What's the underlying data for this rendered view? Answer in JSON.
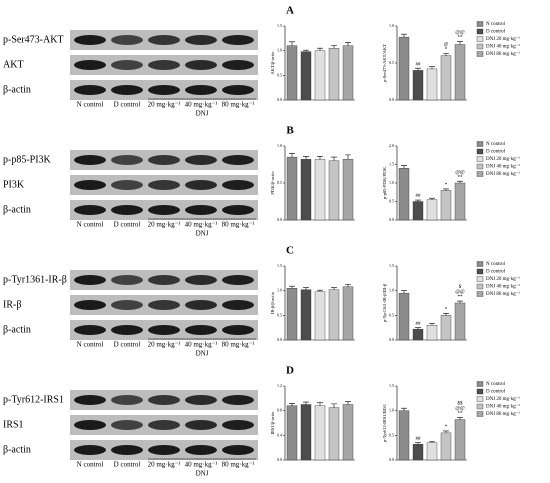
{
  "legend": [
    {
      "name": "N control",
      "color": "#8c8c8c"
    },
    {
      "name": "D control",
      "color": "#4d4d4d"
    },
    {
      "name": "DNJ 20 mg·kg⁻¹",
      "color": "#e0e0e0"
    },
    {
      "name": "DNJ 40 mg·kg⁻¹",
      "color": "#c4c4c4"
    },
    {
      "name": "DNJ 80 mg·kg⁻¹",
      "color": "#a6a6a6"
    }
  ],
  "panels": [
    {
      "letter": "A",
      "blot_labels": [
        "p-Ser473-AKT",
        "AKT",
        "β-actin"
      ],
      "lane_labels": [
        "N control",
        "D control",
        "20 mg·kg⁻¹",
        "40 mg·kg⁻¹",
        "80 mg·kg⁻¹"
      ],
      "group_label": "DNJ",
      "charts": [
        {
          "type": "bar",
          "ylabel": "AKT/β-actin",
          "values": [
            1.1,
            0.98,
            1.0,
            1.05,
            1.1
          ],
          "errors": [
            0.08,
            0.03,
            0.05,
            0.06,
            0.07
          ],
          "ylim": [
            0,
            1.5
          ],
          "yticks": [
            {
              "value": 0,
              "label": "0.0"
            },
            {
              "value": 0.5,
              "label": "0.5"
            },
            {
              "value": 1,
              "label": "1.0"
            },
            {
              "value": 1.5,
              "label": "1.5"
            }
          ]
        },
        {
          "type": "bar",
          "ylabel": "p-Ser473-AKT/AKT",
          "values": [
            0.85,
            0.4,
            0.42,
            0.6,
            0.75
          ],
          "errors": [
            0.04,
            0.03,
            0.03,
            0.03,
            0.04
          ],
          "ylim": [
            0,
            1.0
          ],
          "yticks": [
            {
              "value": 0,
              "label": "0.0"
            },
            {
              "value": 0.5,
              "label": "0.5"
            },
            {
              "value": 1,
              "label": "1.0"
            }
          ],
          "annotations": [
            {
              "bar": 1,
              "lines": [
                "##"
              ]
            },
            {
              "bar": 3,
              "lines": [
                "@",
                "*"
              ]
            },
            {
              "bar": 4,
              "lines": [
                "@@",
                "**"
              ]
            }
          ]
        }
      ]
    },
    {
      "letter": "B",
      "blot_labels": [
        "p-p85-PI3K",
        "PI3K",
        "β-actin"
      ],
      "lane_labels": [
        "N control",
        "D control",
        "20 mg·kg⁻¹",
        "40 mg·kg⁻¹",
        "80 mg·kg⁻¹"
      ],
      "group_label": "DNJ",
      "charts": [
        {
          "type": "bar",
          "ylabel": "PI3K/β-actin",
          "values": [
            0.85,
            0.82,
            0.82,
            0.8,
            0.82
          ],
          "errors": [
            0.05,
            0.04,
            0.04,
            0.05,
            0.06
          ],
          "ylim": [
            0,
            1.0
          ],
          "yticks": [
            {
              "value": 0,
              "label": "0.0"
            },
            {
              "value": 0.5,
              "label": "0.5"
            },
            {
              "value": 1,
              "label": "1.0"
            }
          ]
        },
        {
          "type": "bar",
          "ylabel": "p-p85-PI3K/PI3K",
          "values": [
            1.4,
            0.5,
            0.55,
            0.8,
            1.0
          ],
          "errors": [
            0.07,
            0.04,
            0.04,
            0.04,
            0.05
          ],
          "ylim": [
            0,
            2.0
          ],
          "yticks": [
            {
              "value": 0,
              "label": "0.0"
            },
            {
              "value": 0.5,
              "label": "0.5"
            },
            {
              "value": 1,
              "label": "1.0"
            },
            {
              "value": 1.5,
              "label": "1.5"
            },
            {
              "value": 2,
              "label": "2.0"
            }
          ],
          "annotations": [
            {
              "bar": 1,
              "lines": [
                "##"
              ]
            },
            {
              "bar": 3,
              "lines": [
                "*"
              ]
            },
            {
              "bar": 4,
              "lines": [
                "@@",
                "**"
              ]
            }
          ]
        }
      ]
    },
    {
      "letter": "C",
      "blot_labels": [
        "p-Tyr1361-IR-β",
        "IR-β",
        "β-actin"
      ],
      "lane_labels": [
        "N control",
        "D control",
        "20 mg·kg⁻¹",
        "40 mg·kg⁻¹",
        "80 mg·kg⁻¹"
      ],
      "group_label": "DNJ",
      "charts": [
        {
          "type": "bar",
          "ylabel": "IR-β/β-actin",
          "values": [
            1.05,
            1.02,
            0.98,
            1.02,
            1.08
          ],
          "errors": [
            0.04,
            0.04,
            0.03,
            0.04,
            0.05
          ],
          "ylim": [
            0,
            1.5
          ],
          "yticks": [
            {
              "value": 0,
              "label": "0.0"
            },
            {
              "value": 0.5,
              "label": "0.5"
            },
            {
              "value": 1,
              "label": "1.0"
            },
            {
              "value": 1.5,
              "label": "1.5"
            }
          ]
        },
        {
          "type": "bar",
          "ylabel": "p-Tyr1361-IR-β/IR-β",
          "values": [
            0.95,
            0.22,
            0.3,
            0.5,
            0.75
          ],
          "errors": [
            0.05,
            0.03,
            0.03,
            0.04,
            0.04
          ],
          "ylim": [
            0,
            1.5
          ],
          "yticks": [
            {
              "value": 0,
              "label": "0.0"
            },
            {
              "value": 0.5,
              "label": "0.5"
            },
            {
              "value": 1,
              "label": "1.0"
            },
            {
              "value": 1.5,
              "label": "1.5"
            }
          ],
          "annotations": [
            {
              "bar": 1,
              "lines": [
                "##"
              ]
            },
            {
              "bar": 3,
              "lines": [
                "*"
              ]
            },
            {
              "bar": 4,
              "lines": [
                "$",
                "@@",
                "**"
              ]
            }
          ]
        }
      ]
    },
    {
      "letter": "D",
      "blot_labels": [
        "p-Tyr612-IRS1",
        "IRS1",
        "β-actin"
      ],
      "lane_labels": [
        "N control",
        "D control",
        "20 mg·kg⁻¹",
        "40 mg·kg⁻¹",
        "80 mg·kg⁻¹"
      ],
      "group_label": "DNJ",
      "charts": [
        {
          "type": "bar",
          "ylabel": "IRS1/β-actin",
          "values": [
            0.88,
            0.9,
            0.88,
            0.85,
            0.9
          ],
          "errors": [
            0.04,
            0.04,
            0.05,
            0.06,
            0.05
          ],
          "ylim": [
            0,
            1.2
          ],
          "yticks": [
            {
              "value": 0,
              "label": "0.0"
            },
            {
              "value": 0.4,
              "label": "0.4"
            },
            {
              "value": 0.8,
              "label": "0.8"
            },
            {
              "value": 1.2,
              "label": "1.2"
            }
          ]
        },
        {
          "type": "bar",
          "ylabel": "p-Tyr612-IRS1/IRS1",
          "values": [
            1.0,
            0.32,
            0.35,
            0.55,
            0.82
          ],
          "errors": [
            0.05,
            0.03,
            0.03,
            0.04,
            0.04
          ],
          "ylim": [
            0,
            1.5
          ],
          "yticks": [
            {
              "value": 0,
              "label": "0.0"
            },
            {
              "value": 0.5,
              "label": "0.5"
            },
            {
              "value": 1,
              "label": "1.0"
            },
            {
              "value": 1.5,
              "label": "1.5"
            }
          ],
          "annotations": [
            {
              "bar": 1,
              "lines": [
                "##"
              ]
            },
            {
              "bar": 3,
              "lines": [
                "*"
              ]
            },
            {
              "bar": 4,
              "lines": [
                "$$",
                "@@",
                "**"
              ]
            }
          ]
        }
      ]
    }
  ]
}
